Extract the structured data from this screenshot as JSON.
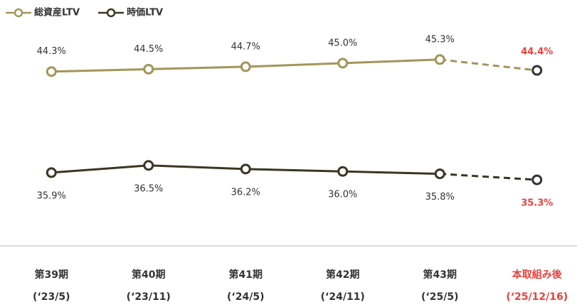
{
  "chart_data": {
    "type": "line",
    "categories": [
      [
        "第39期",
        "(‘23/5)"
      ],
      [
        "第40期",
        "(‘23/11)"
      ],
      [
        "第41期",
        "(‘24/5)"
      ],
      [
        "第42期",
        "(‘24/11)"
      ],
      [
        "第43期",
        "(‘25/5)"
      ],
      [
        "本取組み後",
        "(‘25/12/16)"
      ]
    ],
    "series": [
      {
        "name": "総資産LTV",
        "color": "#a39559",
        "label_position": "above",
        "values": [
          44.3,
          44.5,
          44.7,
          45.0,
          45.3,
          44.4
        ],
        "value_labels": [
          "44.3%",
          "44.5%",
          "44.7%",
          "45.0%",
          "45.3%",
          "44.4%"
        ]
      },
      {
        "name": "時価LTV",
        "color": "#3b3623",
        "label_position": "below",
        "values": [
          35.9,
          36.5,
          36.2,
          36.0,
          35.8,
          35.3
        ],
        "value_labels": [
          "35.9%",
          "36.5%",
          "36.2%",
          "36.0%",
          "35.8%",
          "35.3%"
        ]
      }
    ],
    "ylim": [
      33,
      47
    ],
    "dashed_last_segment": true,
    "highlight_color": "#e8413c",
    "legend": "top-left"
  }
}
